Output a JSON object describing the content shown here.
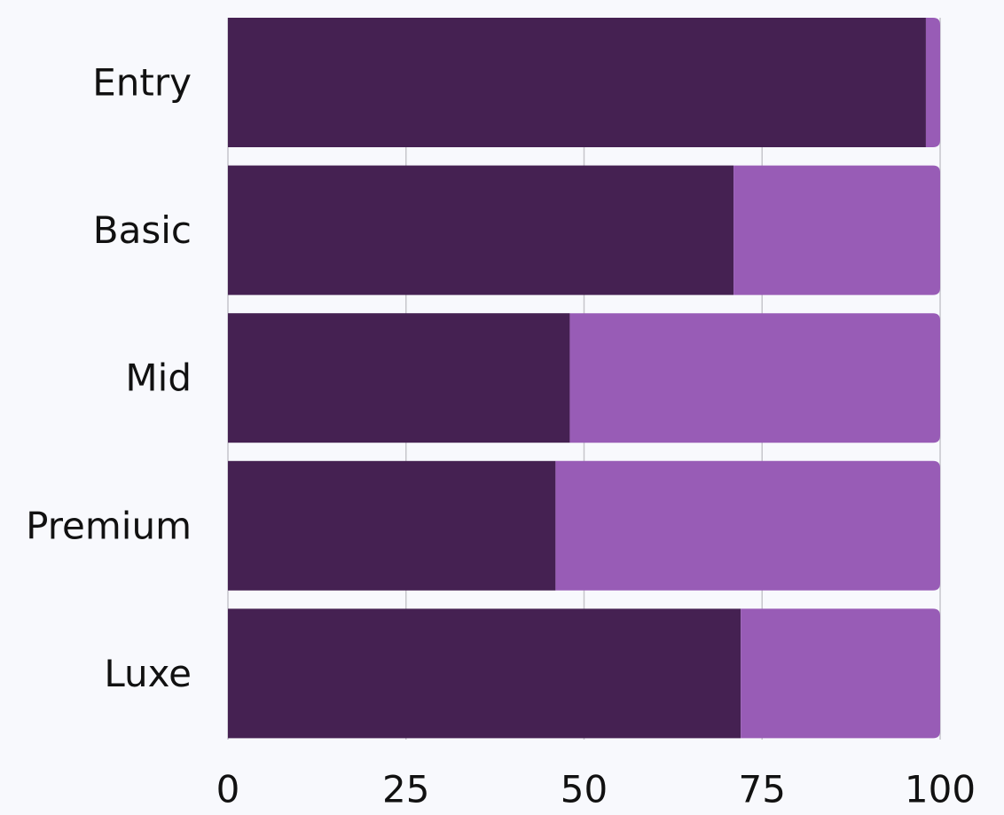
{
  "chart_data": {
    "type": "bar",
    "orientation": "horizontal",
    "stacked": true,
    "title": "",
    "xlabel": "",
    "ylabel": "",
    "categories": [
      "Entry",
      "Basic",
      "Mid",
      "Premium",
      "Luxe"
    ],
    "series": [
      {
        "values": [
          98,
          71,
          48,
          46,
          72
        ],
        "color": "#452152"
      },
      {
        "values": [
          2,
          29,
          52,
          54,
          28
        ],
        "color": "#985cb6"
      }
    ],
    "xlim": [
      0,
      100
    ],
    "xticks": [
      0,
      25,
      50,
      75,
      100
    ],
    "grid": true,
    "legend": "none"
  }
}
